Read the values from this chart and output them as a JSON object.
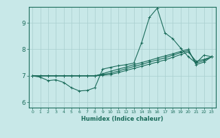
{
  "xlabel": "Humidex (Indice chaleur)",
  "ylabel": "",
  "bg_color": "#c8e8e8",
  "line_color": "#1a6b5a",
  "grid_color": "#a8cece",
  "xlim": [
    -0.5,
    23.5
  ],
  "ylim": [
    5.8,
    9.6
  ],
  "yticks": [
    6,
    7,
    8,
    9
  ],
  "xticks": [
    0,
    1,
    2,
    3,
    4,
    5,
    6,
    7,
    8,
    9,
    10,
    11,
    12,
    13,
    14,
    15,
    16,
    17,
    18,
    19,
    20,
    21,
    22,
    23
  ],
  "series": [
    [
      7.0,
      6.95,
      6.82,
      6.85,
      6.75,
      6.55,
      6.43,
      6.45,
      6.55,
      7.25,
      7.32,
      7.38,
      7.42,
      7.48,
      8.25,
      9.2,
      9.55,
      8.62,
      8.4,
      8.05,
      7.72,
      7.48,
      7.78,
      7.72
    ],
    [
      7.0,
      7.0,
      7.0,
      7.0,
      7.0,
      7.0,
      7.0,
      7.0,
      7.0,
      7.08,
      7.17,
      7.25,
      7.33,
      7.42,
      7.5,
      7.58,
      7.67,
      7.75,
      7.83,
      7.92,
      8.0,
      7.42,
      7.52,
      7.72
    ],
    [
      7.0,
      7.0,
      7.0,
      7.0,
      7.0,
      7.0,
      7.0,
      7.0,
      7.0,
      7.05,
      7.1,
      7.18,
      7.27,
      7.35,
      7.43,
      7.52,
      7.6,
      7.68,
      7.78,
      7.87,
      7.95,
      7.48,
      7.58,
      7.72
    ],
    [
      7.0,
      7.0,
      7.0,
      7.0,
      7.0,
      7.0,
      7.0,
      7.0,
      7.0,
      7.02,
      7.05,
      7.12,
      7.2,
      7.28,
      7.36,
      7.44,
      7.52,
      7.6,
      7.7,
      7.8,
      7.9,
      7.55,
      7.62,
      7.72
    ]
  ],
  "figsize": [
    3.2,
    2.0
  ],
  "dpi": 100
}
